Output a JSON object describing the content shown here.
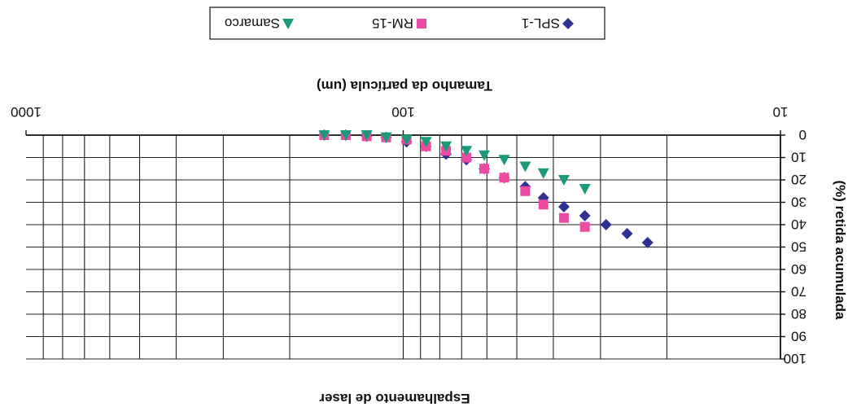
{
  "chart_data": {
    "type": "scatter",
    "orientation": "rotated-180",
    "title": "Espalhamento de laser",
    "xlabel": "Tamanho da partícula (um)",
    "ylabel": "(%) retida acumulada",
    "x_scale": "log",
    "xlim": [
      10,
      1000
    ],
    "ylim": [
      0,
      100
    ],
    "x_tick_labels": [
      "10",
      "100",
      "1000"
    ],
    "y_tick_labels": [
      "0",
      "10",
      "20",
      "30",
      "40",
      "50",
      "60",
      "70",
      "80",
      "90",
      "100"
    ],
    "grid": true,
    "legend_position": "top",
    "series": [
      {
        "name": "SPL-1",
        "color": "#2e3192",
        "marker": "diamond",
        "points": [
          {
            "x": 162,
            "y": 0
          },
          {
            "x": 142,
            "y": 0
          },
          {
            "x": 125,
            "y": 0.5
          },
          {
            "x": 111,
            "y": 1
          },
          {
            "x": 98,
            "y": 3
          },
          {
            "x": 87,
            "y": 5
          },
          {
            "x": 77,
            "y": 8.5
          },
          {
            "x": 68,
            "y": 11
          },
          {
            "x": 61,
            "y": 15
          },
          {
            "x": 54,
            "y": 19
          },
          {
            "x": 47.5,
            "y": 23
          },
          {
            "x": 42.5,
            "y": 28
          },
          {
            "x": 37.5,
            "y": 32
          },
          {
            "x": 33,
            "y": 36
          },
          {
            "x": 29,
            "y": 40
          },
          {
            "x": 25.5,
            "y": 44
          },
          {
            "x": 22.5,
            "y": 48
          }
        ]
      },
      {
        "name": "RM-15",
        "color": "#ec4ba1",
        "marker": "square",
        "points": [
          {
            "x": 162,
            "y": 0
          },
          {
            "x": 142,
            "y": 0
          },
          {
            "x": 125,
            "y": 0.5
          },
          {
            "x": 111,
            "y": 1
          },
          {
            "x": 98,
            "y": 2
          },
          {
            "x": 87,
            "y": 5
          },
          {
            "x": 77,
            "y": 7
          },
          {
            "x": 68,
            "y": 10
          },
          {
            "x": 61,
            "y": 15
          },
          {
            "x": 54,
            "y": 19
          },
          {
            "x": 47.5,
            "y": 25
          },
          {
            "x": 42.5,
            "y": 31
          },
          {
            "x": 37.5,
            "y": 37
          },
          {
            "x": 33,
            "y": 41
          }
        ]
      },
      {
        "name": "Samarco",
        "color": "#1a9a7a",
        "marker": "triangle",
        "points": [
          {
            "x": 162,
            "y": 0
          },
          {
            "x": 142,
            "y": 0
          },
          {
            "x": 125,
            "y": 0
          },
          {
            "x": 111,
            "y": 1
          },
          {
            "x": 98,
            "y": 2
          },
          {
            "x": 87,
            "y": 3
          },
          {
            "x": 77,
            "y": 5
          },
          {
            "x": 68,
            "y": 7
          },
          {
            "x": 61,
            "y": 9
          },
          {
            "x": 54,
            "y": 11
          },
          {
            "x": 47.5,
            "y": 14
          },
          {
            "x": 42.5,
            "y": 17
          },
          {
            "x": 37.5,
            "y": 20
          },
          {
            "x": 33,
            "y": 24
          }
        ]
      }
    ]
  }
}
